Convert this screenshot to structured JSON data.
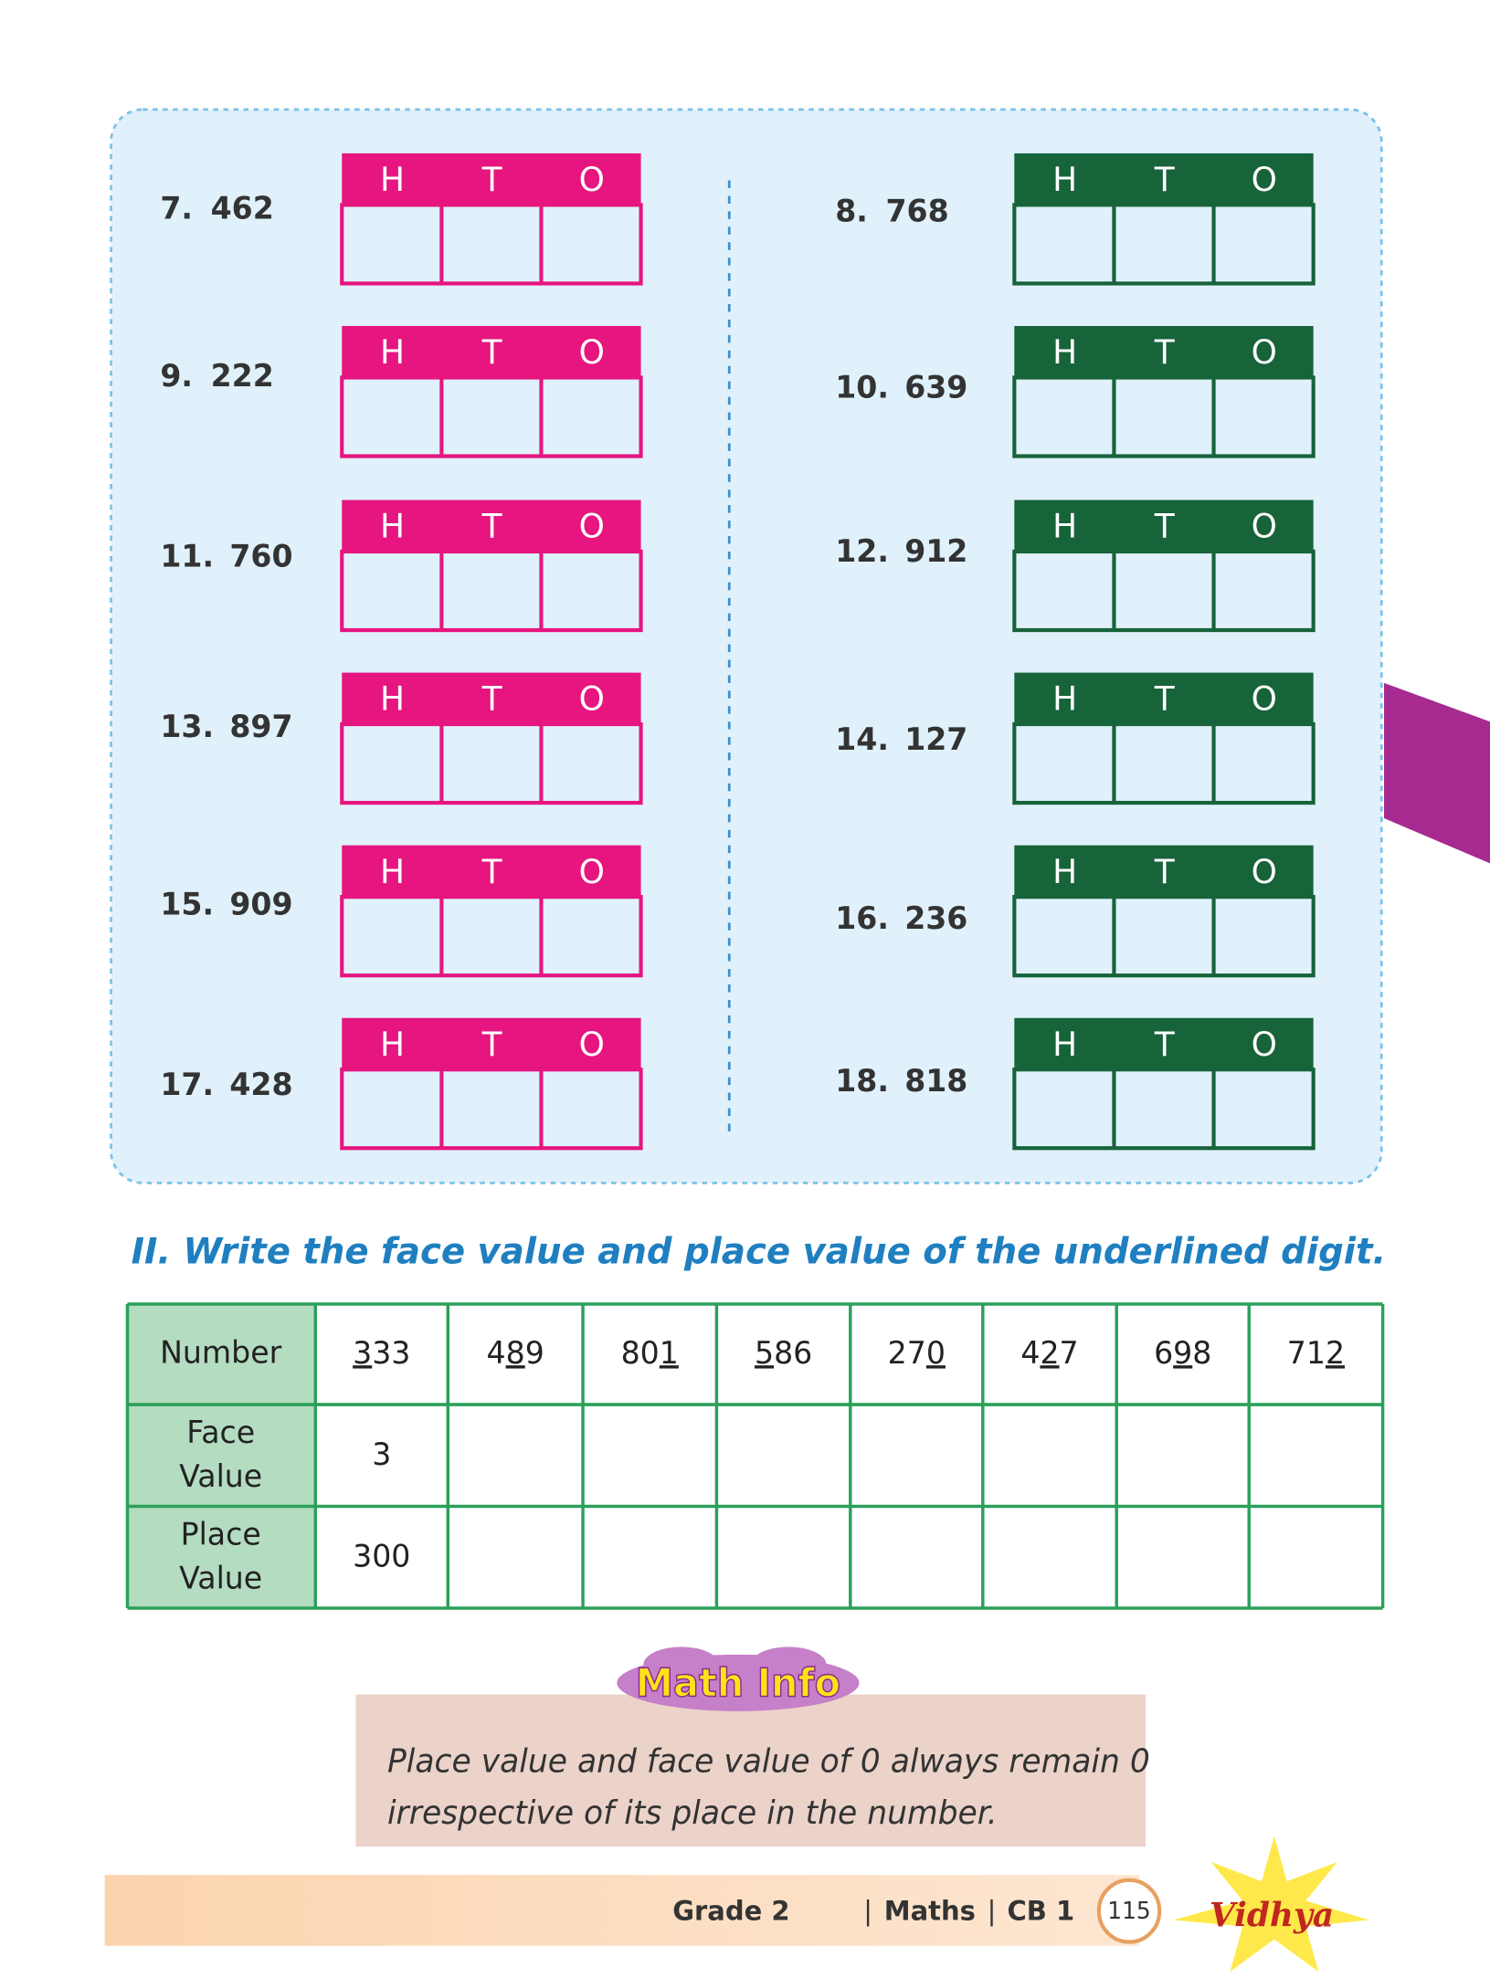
{
  "exercises": {
    "left": [
      {
        "label": "7.",
        "number": "462",
        "headers": [
          "H",
          "T",
          "O"
        ]
      },
      {
        "label": "9.",
        "number": "222",
        "headers": [
          "H",
          "T",
          "O"
        ]
      },
      {
        "label": "11.",
        "number": "760",
        "headers": [
          "H",
          "T",
          "O"
        ]
      },
      {
        "label": "13.",
        "number": "897",
        "headers": [
          "H",
          "T",
          "O"
        ]
      },
      {
        "label": "15.",
        "number": "909",
        "headers": [
          "H",
          "T",
          "O"
        ]
      },
      {
        "label": "17.",
        "number": "428",
        "headers": [
          "H",
          "T",
          "O"
        ]
      }
    ],
    "right": [
      {
        "label": "8.",
        "number": "768",
        "headers": [
          "H",
          "T",
          "O"
        ]
      },
      {
        "label": "10.",
        "number": "639",
        "headers": [
          "H",
          "T",
          "O"
        ]
      },
      {
        "label": "12.",
        "number": "912",
        "headers": [
          "H",
          "T",
          "O"
        ]
      },
      {
        "label": "14.",
        "number": "127",
        "headers": [
          "H",
          "T",
          "O"
        ]
      },
      {
        "label": "16.",
        "number": "236",
        "headers": [
          "H",
          "T",
          "O"
        ]
      },
      {
        "label": "18.",
        "number": "818",
        "headers": [
          "H",
          "T",
          "O"
        ]
      }
    ]
  },
  "section": {
    "title": "II. Write the face value and place value of the underlined digit."
  },
  "table": {
    "row_headers": [
      "Number",
      "Face Value",
      "Place Value"
    ],
    "numbers": [
      [
        {
          "text": "3",
          "underline": true
        },
        {
          "text": "33"
        }
      ],
      [
        {
          "text": "4"
        },
        {
          "text": "8",
          "underline": true
        },
        {
          "text": "9"
        }
      ],
      [
        {
          "text": "80"
        },
        {
          "text": "1",
          "underline": true
        }
      ],
      [
        {
          "text": "5",
          "underline": true
        },
        {
          "text": "86"
        }
      ],
      [
        {
          "text": "27"
        },
        {
          "text": "0",
          "underline": true
        }
      ],
      [
        {
          "text": "4"
        },
        {
          "text": "2",
          "underline": true
        },
        {
          "text": "7"
        }
      ],
      [
        {
          "text": "6"
        },
        {
          "text": "9",
          "underline": true
        },
        {
          "text": "8"
        }
      ],
      [
        {
          "text": "71"
        },
        {
          "text": "2",
          "underline": true
        }
      ]
    ],
    "face_values": [
      "3"
    ],
    "place_values": [
      "300"
    ]
  },
  "math_info": {
    "title": "Math Info",
    "lines": [
      "Place value and face value of 0 always remain 0",
      "irrespective of its place in the number."
    ]
  },
  "footer": {
    "grade": "Grade 2",
    "subject": "Maths",
    "book": "CB 1",
    "page": "115",
    "logo": "Vidhya"
  }
}
